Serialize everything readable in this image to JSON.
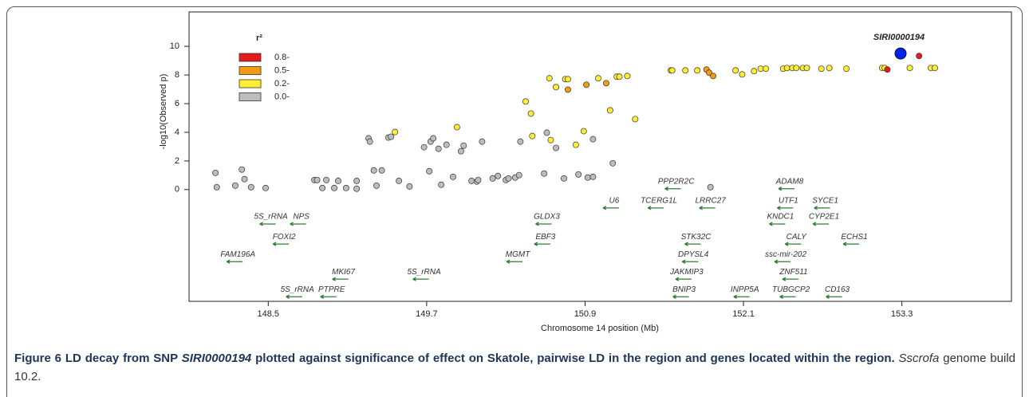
{
  "chart_data": {
    "type": "scatter",
    "xlabel": "Chromosome 14 position (Mb)",
    "ylabel": "-log10(Observed p)",
    "xlim": [
      147.9,
      154.13
    ],
    "ylim": [
      -7.8,
      12.4
    ],
    "xticks": [
      148.5,
      149.7,
      150.9,
      152.1,
      153.3
    ],
    "yticks": [
      0,
      2,
      4,
      6,
      8,
      10
    ],
    "legend_title": "r²",
    "legend": "top-left",
    "series": [
      {
        "name": "0.8-",
        "color": "#e41a1c",
        "x": [
          153.19,
          153.43
        ],
        "values": [
          8.38,
          9.33
        ]
      },
      {
        "name": "0.5-",
        "color": "#f39c12",
        "x": [
          150.77,
          150.91,
          151.06,
          151.82,
          151.84,
          151.87
        ],
        "values": [
          6.98,
          7.32,
          7.43,
          8.38,
          8.16,
          7.93
        ]
      },
      {
        "name": "0.2-",
        "color": "#ffee33",
        "x": [
          149.46,
          149.93,
          150.5,
          150.45,
          150.49,
          150.63,
          150.68,
          150.75,
          150.77,
          150.83,
          150.64,
          150.89,
          151.0,
          151.09,
          151.14,
          151.16,
          151.22,
          151.28,
          151.55,
          151.56,
          151.66,
          151.75,
          152.04,
          152.09,
          152.18,
          152.23,
          152.27,
          152.4,
          152.43,
          152.47,
          152.5,
          152.55,
          152.58,
          152.69,
          152.75,
          152.88,
          153.15,
          153.17,
          153.36,
          153.52,
          153.55
        ],
        "values": [
          4.02,
          4.36,
          3.74,
          6.15,
          5.31,
          7.77,
          7.15,
          7.71,
          7.71,
          3.13,
          3.46,
          4.08,
          7.77,
          5.53,
          7.88,
          7.88,
          7.93,
          4.92,
          8.32,
          8.32,
          8.32,
          8.32,
          8.32,
          8.04,
          8.27,
          8.44,
          8.44,
          8.44,
          8.49,
          8.49,
          8.49,
          8.49,
          8.49,
          8.44,
          8.49,
          8.44,
          8.49,
          8.49,
          8.49,
          8.49,
          8.49
        ]
      },
      {
        "name": "0.0-",
        "color": "#bdbdbd",
        "x": [
          148.1,
          148.11,
          148.25,
          148.3,
          148.32,
          148.37,
          148.48,
          148.85,
          148.87,
          148.91,
          148.94,
          149.0,
          149.03,
          149.09,
          149.17,
          149.17,
          149.26,
          149.27,
          149.3,
          149.32,
          149.36,
          149.41,
          149.43,
          149.49,
          149.57,
          149.68,
          149.72,
          149.73,
          149.75,
          149.79,
          149.81,
          149.85,
          149.9,
          149.96,
          149.98,
          150.04,
          150.08,
          150.09,
          150.12,
          150.2,
          150.24,
          150.3,
          150.32,
          150.37,
          150.4,
          150.41,
          150.59,
          150.61,
          150.68,
          150.74,
          150.85,
          150.92,
          150.96,
          150.96,
          151.11,
          151.85
        ],
        "values": [
          1.17,
          0.17,
          0.28,
          1.4,
          0.73,
          0.17,
          0.11,
          0.67,
          0.67,
          0.11,
          0.67,
          0.11,
          0.61,
          0.11,
          0.06,
          0.61,
          3.58,
          3.35,
          1.34,
          0.28,
          1.34,
          3.63,
          3.69,
          0.61,
          0.22,
          2.96,
          1.28,
          3.35,
          3.58,
          2.85,
          0.34,
          3.13,
          0.89,
          2.68,
          3.07,
          0.61,
          0.56,
          0.67,
          3.35,
          0.78,
          0.95,
          0.67,
          0.78,
          0.84,
          1.01,
          3.35,
          1.12,
          3.97,
          2.91,
          0.78,
          1.06,
          0.84,
          3.52,
          0.89,
          1.84,
          0.17
        ]
      }
    ],
    "annotations": [
      {
        "text": "SIRI0000194",
        "x": 153.29,
        "y": 9.5,
        "color": "#0022ee"
      }
    ],
    "gene_color": "#2e7d32",
    "genes": [
      {
        "name": "PPP2R2C",
        "x": 151.59,
        "y": 0.56
      },
      {
        "name": "ADAM8",
        "x": 152.45,
        "y": 0.56
      },
      {
        "name": "U6",
        "x": 151.12,
        "y": -0.78
      },
      {
        "name": "TCERG1L",
        "x": 151.46,
        "y": -0.78
      },
      {
        "name": "LRRC27",
        "x": 151.85,
        "y": -0.78
      },
      {
        "name": "UTF1",
        "x": 152.44,
        "y": -0.78
      },
      {
        "name": "SYCE1",
        "x": 152.72,
        "y": -0.78
      },
      {
        "name": "5S_rRNA",
        "x": 148.52,
        "y": -1.9
      },
      {
        "name": "NPS",
        "x": 148.75,
        "y": -1.9
      },
      {
        "name": "GLDX3",
        "x": 150.61,
        "y": -1.9
      },
      {
        "name": "KNDC1",
        "x": 152.38,
        "y": -1.9
      },
      {
        "name": "CYP2E1",
        "x": 152.71,
        "y": -1.9
      },
      {
        "name": "FOXI2",
        "x": 148.62,
        "y": -3.3
      },
      {
        "name": "EBF3",
        "x": 150.6,
        "y": -3.3
      },
      {
        "name": "STK32C",
        "x": 151.74,
        "y": -3.3
      },
      {
        "name": "CALY",
        "x": 152.5,
        "y": -3.3
      },
      {
        "name": "ECHS1",
        "x": 152.94,
        "y": -3.3
      },
      {
        "name": "FAM196A",
        "x": 148.27,
        "y": -4.53
      },
      {
        "name": "MGMT",
        "x": 150.39,
        "y": -4.53
      },
      {
        "name": "DPYSL4",
        "x": 151.72,
        "y": -4.53
      },
      {
        "name": "ssc-mir-202",
        "x": 152.42,
        "y": -4.53
      },
      {
        "name": "MKI67",
        "x": 149.07,
        "y": -5.75
      },
      {
        "name": "5S_rRNA",
        "x": 149.68,
        "y": -5.75
      },
      {
        "name": "JAKMIP3",
        "x": 151.67,
        "y": -5.75
      },
      {
        "name": "ZNF511",
        "x": 152.48,
        "y": -5.75
      },
      {
        "name": "5S_rRNA",
        "x": 148.72,
        "y": -6.98
      },
      {
        "name": "PTPRE",
        "x": 148.98,
        "y": -6.98
      },
      {
        "name": "BNIP3",
        "x": 151.65,
        "y": -6.98
      },
      {
        "name": "INPP5A",
        "x": 152.11,
        "y": -6.98
      },
      {
        "name": "TUBGCP2",
        "x": 152.46,
        "y": -6.98
      },
      {
        "name": "CD163",
        "x": 152.81,
        "y": -6.98
      }
    ]
  },
  "caption": {
    "label": "Figure 6",
    "text": [
      "LD decay from SNP ",
      "SIRI0000194",
      " plotted against significance of effect on Skatole, pairwise LD in the region and genes located within the region."
    ],
    "note": [
      "Sscrofa",
      " genome build 10.2."
    ]
  }
}
